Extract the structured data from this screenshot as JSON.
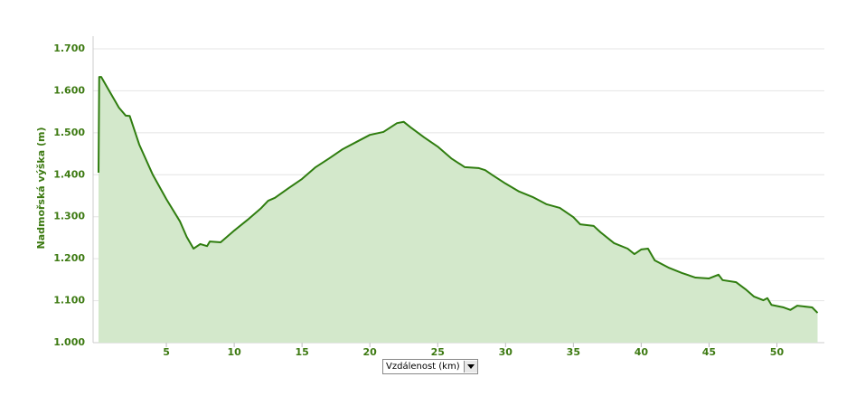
{
  "chart_data": {
    "type": "area",
    "y_label": "Nadmořská výška (m)",
    "x_label": "Vzdálenost (km)",
    "color": "#2f7d0f",
    "fill": "#d3e8cb",
    "grid": true,
    "xlim": [
      -0.4,
      53.5
    ],
    "ylim": [
      1000,
      1700
    ],
    "xticks": [
      5,
      10,
      15,
      20,
      25,
      30,
      35,
      40,
      45,
      50
    ],
    "yticks": [
      {
        "value": 1000,
        "label": "1.000"
      },
      {
        "value": 1100,
        "label": "1.100"
      },
      {
        "value": 1200,
        "label": "1.200"
      },
      {
        "value": 1300,
        "label": "1.300"
      },
      {
        "value": 1400,
        "label": "1.400"
      },
      {
        "value": 1500,
        "label": "1.500"
      },
      {
        "value": 1600,
        "label": "1.600"
      },
      {
        "value": 1700,
        "label": "1.700"
      }
    ],
    "x": [
      0,
      0.05,
      0.2,
      1,
      1.5,
      2,
      2.3,
      3,
      4,
      5,
      6,
      6.5,
      7,
      7.5,
      8,
      8.2,
      9,
      10,
      11,
      12,
      12.5,
      13,
      14,
      15,
      16,
      17,
      18,
      19,
      20,
      21,
      22,
      22.5,
      23,
      24,
      25,
      26,
      27,
      28,
      28.5,
      29,
      30,
      31,
      32,
      33,
      34,
      35,
      35.5,
      36.5,
      37,
      38,
      39,
      39.5,
      40,
      40.5,
      41,
      42,
      43,
      44,
      45,
      45.7,
      46,
      47,
      47.7,
      48.3,
      49,
      49.3,
      49.6,
      50.5,
      51,
      51.5,
      52.6,
      53
    ],
    "values": [
      1405,
      1633,
      1633,
      1588,
      1560,
      1541,
      1540,
      1472,
      1400,
      1342,
      1289,
      1252,
      1224,
      1235,
      1230,
      1241,
      1239,
      1267,
      1293,
      1321,
      1338,
      1345,
      1368,
      1390,
      1418,
      1439,
      1461,
      1478,
      1495,
      1502,
      1523,
      1526,
      1513,
      1489,
      1467,
      1439,
      1418,
      1416,
      1411,
      1400,
      1379,
      1360,
      1347,
      1330,
      1321,
      1299,
      1282,
      1278,
      1263,
      1237,
      1224,
      1211,
      1222,
      1224,
      1196,
      1179,
      1166,
      1155,
      1153,
      1162,
      1149,
      1144,
      1127,
      1110,
      1101,
      1106,
      1090,
      1084,
      1078,
      1088,
      1084,
      1071
    ]
  }
}
